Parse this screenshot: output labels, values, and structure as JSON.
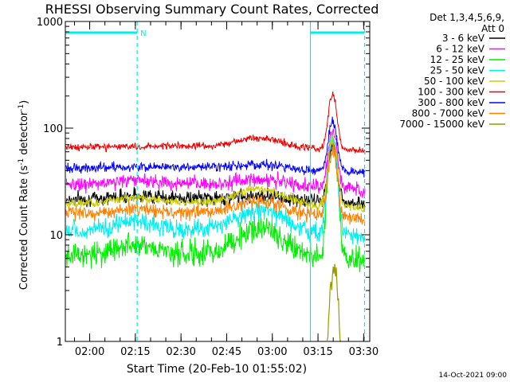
{
  "chart_data": {
    "type": "line",
    "title": "RHESSI Observing Summary Count Rates, Corrected",
    "xlabel": "Start Time (20-Feb-10 01:55:02)",
    "ylabel_main": "Corrected Count Rate (s",
    "ylabel_sup1": "-1",
    "ylabel_mid": " detector",
    "ylabel_sup2": "-1",
    "ylabel_end": ")",
    "yscale": "log",
    "ylim": [
      1,
      1000
    ],
    "xlim": [
      -3,
      97
    ],
    "y_ticks": [
      {
        "value": 1,
        "label": "1"
      },
      {
        "value": 10,
        "label": "10"
      },
      {
        "value": 100,
        "label": "100"
      },
      {
        "value": 1000,
        "label": "1000"
      }
    ],
    "x_ticks": [
      {
        "value": 5,
        "label": "02:00"
      },
      {
        "value": 20,
        "label": "02:15"
      },
      {
        "value": 35,
        "label": "02:30"
      },
      {
        "value": 50,
        "label": "02:45"
      },
      {
        "value": 65,
        "label": "03:00"
      },
      {
        "value": 80,
        "label": "03:15"
      },
      {
        "value": 95,
        "label": "03:30"
      }
    ],
    "legend": {
      "position": "top-right",
      "header_line1": "Det 1,3,4,5,6,9,",
      "header_line2": "Att 0"
    },
    "series": [
      {
        "name": "3 - 6 keV",
        "color": "#000000",
        "base": 22,
        "b1": 1.08,
        "b2": 1.1,
        "flare": 72,
        "noise": 0.03
      },
      {
        "name": "6 - 12 keV",
        "color": "#ff00ff",
        "base": 30,
        "b1": 1.1,
        "b2": 1.14,
        "flare": 95,
        "noise": 0.03
      },
      {
        "name": "12 - 25 keV",
        "color": "#00ee00",
        "base": 6.5,
        "b1": 1.28,
        "b2": 1.85,
        "flare": 75,
        "noise": 0.055
      },
      {
        "name": "25 - 50 keV",
        "color": "#00eeee",
        "base": 11,
        "b1": 1.25,
        "b2": 1.6,
        "flare": 80,
        "noise": 0.04
      },
      {
        "name": "50 - 100 keV",
        "color": "#cccc00",
        "base": 20,
        "b1": 1.12,
        "b2": 1.4,
        "flare": 82,
        "noise": 0.02
      },
      {
        "name": "100 - 300 keV",
        "color": "#ee0000",
        "base": 68,
        "b1": 1.0,
        "b2": 1.22,
        "flare": 210,
        "noise": 0.015
      },
      {
        "name": "300 - 800 keV",
        "color": "#0000ff",
        "base": 43,
        "b1": 1.02,
        "b2": 1.1,
        "flare": 120,
        "noise": 0.02
      },
      {
        "name": "800 - 7000 keV",
        "color": "#ff8000",
        "base": 16,
        "b1": 1.12,
        "b2": 1.35,
        "flare": 65,
        "noise": 0.03
      },
      {
        "name": "7000 - 15000 keV",
        "color": "#999900",
        "base": null,
        "b1": 1,
        "b2": 1,
        "flare": 5,
        "noise": 0.05
      }
    ],
    "markers": {
      "attenuator_label": "N",
      "bar_color": "#00eeee",
      "dashed_lines_x": [
        20.6,
        95.3
      ],
      "solid_lines_x": [
        77.5
      ]
    },
    "timestamp": "14-Oct-2021 09:00"
  }
}
